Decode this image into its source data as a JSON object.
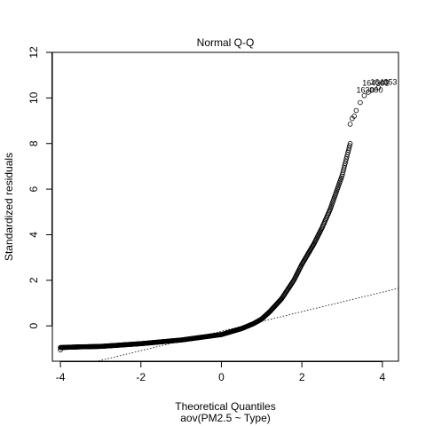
{
  "chart_data": {
    "type": "scatter",
    "title": "Normal Q-Q",
    "xlabel": "Theoretical Quantiles",
    "sublabel": "aov(PM2.5 ~ Type)",
    "ylabel": "Standardized residuals",
    "xlim": [
      -4.2,
      4.4
    ],
    "ylim": [
      -1.55,
      12.0
    ],
    "xticks": [
      -4,
      -2,
      0,
      2,
      4
    ],
    "yticks": [
      0,
      2,
      4,
      6,
      8,
      10,
      12
    ],
    "grid": false,
    "legend": "none",
    "reference_line": {
      "x": [
        -3.2,
        4.4
      ],
      "y": [
        -1.6,
        1.65
      ],
      "style": "dotted"
    },
    "curve_knots": {
      "x": [
        -4.0,
        -3.5,
        -3.0,
        -2.0,
        -1.0,
        0.0,
        0.5,
        0.8,
        1.0,
        1.2,
        1.5,
        1.8,
        2.0,
        2.3,
        2.5,
        2.7,
        2.9,
        3.0,
        3.1,
        3.2
      ],
      "y": [
        -0.95,
        -0.92,
        -0.9,
        -0.78,
        -0.62,
        -0.38,
        -0.12,
        0.1,
        0.3,
        0.62,
        1.2,
        2.0,
        2.7,
        3.6,
        4.3,
        5.1,
        6.1,
        6.6,
        7.3,
        8.0
      ]
    },
    "outlier_points": {
      "x": [
        -4.0,
        -3.8,
        -3.7,
        -3.6,
        3.2,
        3.25,
        3.3,
        3.35,
        3.45,
        3.55,
        3.65,
        3.75,
        3.9,
        4.0,
        4.1
      ],
      "y": [
        -1.05,
        -0.93,
        -0.93,
        -0.92,
        8.85,
        9.1,
        9.2,
        9.45,
        9.8,
        10.1,
        10.25,
        10.35,
        10.45,
        10.65,
        10.7
      ]
    },
    "point_labels": [
      {
        "text": "164301",
        "x": 3.9,
        "y": 10.65
      },
      {
        "text": "164353",
        "x": 4.1,
        "y": 10.7
      },
      {
        "text": "163990",
        "x": 3.75,
        "y": 10.35
      }
    ]
  }
}
